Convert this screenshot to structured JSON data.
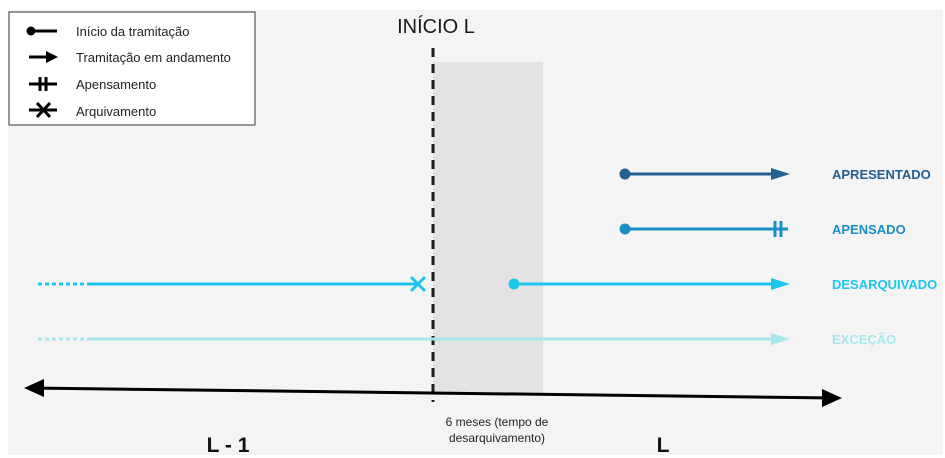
{
  "legend": {
    "items": [
      {
        "label": "Início da tramitação",
        "icon": "circle-line-icon"
      },
      {
        "label": "Tramitação em andamento",
        "icon": "arrow-right-icon"
      },
      {
        "label": "Apensamento",
        "icon": "double-bar-icon"
      },
      {
        "label": "Arquivamento",
        "icon": "x-mark-icon"
      }
    ]
  },
  "header": {
    "title": "INÍCIO L"
  },
  "timeline": {
    "left_period": "L - 1",
    "right_period": "L",
    "note_line1": "6 meses (tempo de",
    "note_line2": "desarquivamento)"
  },
  "statuses": [
    {
      "label": "APRESENTADO",
      "color": "#23618f"
    },
    {
      "label": "APENSADO",
      "color": "#1a8fc4"
    },
    {
      "label": "DESARQUIVADO",
      "color": "#1ec5ec"
    },
    {
      "label": "EXCEÇÃO",
      "color": "#a8e6ee"
    }
  ],
  "colors": {
    "background": "#f4f4f4",
    "shaded_region": "#e3e3e3",
    "axis": "#000000"
  }
}
